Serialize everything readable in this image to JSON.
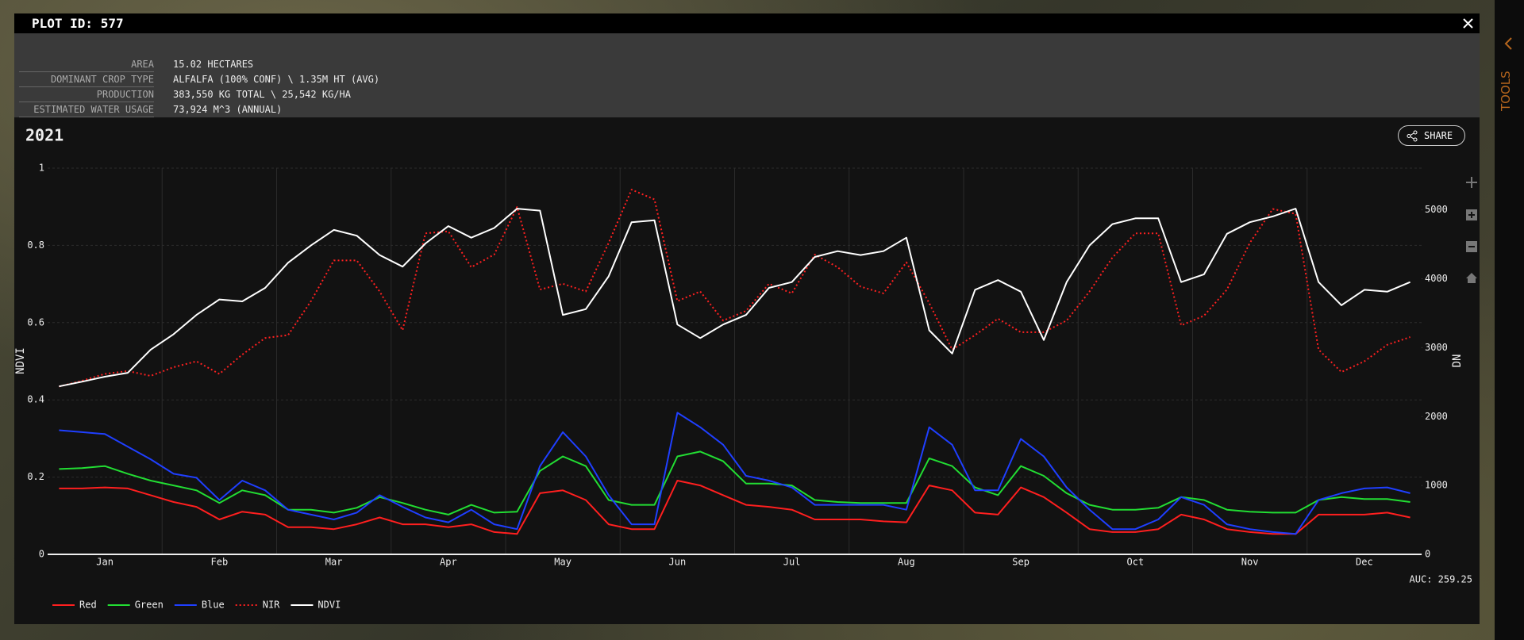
{
  "header": {
    "title": "PLOT ID: 577"
  },
  "info": {
    "rows": [
      [
        "AREA",
        "15.02 HECTARES"
      ],
      [
        "DOMINANT CROP TYPE",
        "ALFALFA (100% CONF) \\ 1.35M HT (AVG)"
      ],
      [
        "PRODUCTION",
        "383,550 KG TOTAL \\ 25,542 KG/HA"
      ],
      [
        "ESTIMATED WATER USAGE",
        "73,924 M^3 (ANNUAL)"
      ]
    ]
  },
  "share": "SHARE",
  "sidebar": "TOOLS",
  "chart_data": {
    "type": "line",
    "title": "2021",
    "y_label": "NDVI",
    "y2_label": "DN",
    "annotation": "AUC: 259.25",
    "categories": [
      null,
      null,
      "Jan",
      null,
      null,
      null,
      null,
      "Feb",
      null,
      null,
      null,
      null,
      "Mar",
      null,
      null,
      null,
      null,
      "Apr",
      null,
      null,
      null,
      null,
      "May",
      null,
      null,
      null,
      null,
      "Jun",
      null,
      null,
      null,
      null,
      "Jul",
      null,
      null,
      null,
      null,
      "Aug",
      null,
      null,
      null,
      null,
      "Sep",
      null,
      null,
      null,
      null,
      "Oct",
      null,
      null,
      null,
      null,
      "Nov",
      null,
      null,
      null,
      null,
      "Dec",
      null,
      null
    ],
    "ylim": [
      0,
      1
    ],
    "yticks": [
      0,
      0.2,
      0.4,
      0.6,
      0.8,
      1
    ],
    "y2lim": [
      0,
      5606
    ],
    "y2ticks": [
      0,
      1000,
      2000,
      3000,
      4000,
      5000
    ],
    "grid": true,
    "legend": "bottom-left",
    "series": [
      {
        "name": "Red",
        "color": "#ff1f1f",
        "axis": "y2",
        "values": [
          957,
          957,
          971,
          957,
          859,
          760,
          690,
          507,
          619,
          577,
          394,
          394,
          366,
          436,
          535,
          436,
          436,
          394,
          436,
          324,
          296,
          887,
          929,
          789,
          436,
          366,
          366,
          1070,
          1000,
          859,
          718,
          690,
          648,
          507,
          507,
          507,
          479,
          465,
          1000,
          929,
          605,
          577,
          971,
          831,
          605,
          366,
          324,
          324,
          366,
          577,
          507,
          366,
          324,
          296,
          296,
          577,
          577,
          577,
          605,
          535
        ]
      },
      {
        "name": "Green",
        "color": "#22dd33",
        "axis": "y2",
        "values": [
          1239,
          1253,
          1281,
          1169,
          1070,
          1000,
          929,
          746,
          929,
          859,
          648,
          648,
          605,
          676,
          831,
          746,
          648,
          577,
          718,
          605,
          619,
          1211,
          1422,
          1281,
          789,
          718,
          718,
          1422,
          1492,
          1352,
          1028,
          1028,
          1000,
          789,
          760,
          746,
          746,
          746,
          1394,
          1281,
          971,
          859,
          1281,
          1140,
          887,
          718,
          648,
          648,
          676,
          831,
          789,
          648,
          619,
          605,
          605,
          789,
          831,
          802,
          802,
          760
        ]
      },
      {
        "name": "Blue",
        "color": "#1f3fff",
        "axis": "y2",
        "values": [
          1802,
          1774,
          1746,
          1563,
          1380,
          1169,
          1112,
          789,
          1070,
          929,
          648,
          577,
          507,
          605,
          859,
          690,
          535,
          465,
          648,
          436,
          366,
          1281,
          1774,
          1422,
          859,
          436,
          436,
          2056,
          1845,
          1591,
          1140,
          1070,
          971,
          718,
          718,
          718,
          718,
          648,
          1845,
          1591,
          929,
          929,
          1676,
          1422,
          971,
          648,
          366,
          366,
          507,
          831,
          718,
          436,
          366,
          324,
          296,
          789,
          887,
          957,
          971,
          887
        ]
      },
      {
        "name": "NIR",
        "color": "#ff2020",
        "axis": "y2",
        "dash": "dot",
        "values": [
          2436,
          2520,
          2619,
          2661,
          2590,
          2717,
          2802,
          2619,
          2900,
          3140,
          3182,
          3675,
          4266,
          4266,
          3816,
          3253,
          4660,
          4689,
          4168,
          4351,
          5041,
          3844,
          3928,
          3816,
          4520,
          5294,
          5153,
          3675,
          3816,
          3393,
          3534,
          3928,
          3788,
          4351,
          4168,
          3886,
          3788,
          4238,
          3647,
          2971,
          3182,
          3421,
          3224,
          3224,
          3393,
          3816,
          4309,
          4660,
          4660,
          3323,
          3464,
          3844,
          4520,
          5013,
          4942,
          2971,
          2647,
          2802,
          3041,
          3154
        ]
      },
      {
        "name": "NDVI",
        "color": "#ffffff",
        "values": [
          0.435,
          0.447,
          0.46,
          0.47,
          0.53,
          0.57,
          0.62,
          0.66,
          0.655,
          0.69,
          0.755,
          0.8,
          0.84,
          0.825,
          0.775,
          0.745,
          0.805,
          0.85,
          0.82,
          0.845,
          0.895,
          0.89,
          0.62,
          0.635,
          0.72,
          0.86,
          0.865,
          0.595,
          0.56,
          0.595,
          0.62,
          0.69,
          0.705,
          0.77,
          0.785,
          0.775,
          0.785,
          0.82,
          0.58,
          0.52,
          0.685,
          0.71,
          0.68,
          0.555,
          0.705,
          0.8,
          0.855,
          0.87,
          0.87,
          0.705,
          0.725,
          0.83,
          0.86,
          0.875,
          0.895,
          0.705,
          0.645,
          0.685,
          0.68,
          0.705
        ]
      }
    ]
  }
}
